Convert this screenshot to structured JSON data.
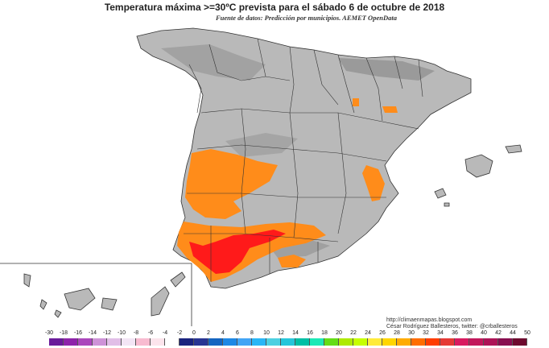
{
  "title": "Temperatura máxima >=30ºC prevista para el sábado 6 de octubre de 2018",
  "subtitle": "Fuente de datos: Predicción por municipios. AEMET OpenData",
  "credits": {
    "line1": "http://climaenmapas.blogspot.com",
    "line2": "César Rodríguez Ballesteros, twitter: @crballesteros"
  },
  "colors": {
    "land": "#b4b4b4",
    "land_dark": "#9e9e9e",
    "sea": "#ffffff",
    "border": "#333333",
    "hot_orange": "#ff8c1a",
    "hot_red": "#ff1a1a"
  },
  "legend": {
    "labels": [
      "-30",
      "-18",
      "-16",
      "-14",
      "-12",
      "-10",
      "-8",
      "-6",
      "-4",
      "-2",
      "0",
      "2",
      "4",
      "6",
      "8",
      "10",
      "12",
      "14",
      "16",
      "18",
      "20",
      "22",
      "24",
      "26",
      "28",
      "30",
      "32",
      "34",
      "36",
      "38",
      "40",
      "42",
      "44",
      "50"
    ],
    "colors": [
      "#6a1b9a",
      "#8e24aa",
      "#ab47bc",
      "#ce93d8",
      "#e1bee7",
      "#f3e5f5",
      "#f8bbd0",
      "#fce4ec",
      "#ffffff",
      "#1a237e",
      "#283593",
      "#1565c0",
      "#1e88e5",
      "#42a5f5",
      "#29b6f6",
      "#4dd0e1",
      "#26c6da",
      "#00bfa5",
      "#1de9b6",
      "#64dd17",
      "#aeea00",
      "#c6ff00",
      "#ffeb3b",
      "#ffd600",
      "#ffab00",
      "#ff6d00",
      "#ff3d00",
      "#e53935",
      "#d81b60",
      "#c2185b",
      "#ad1457",
      "#880e4f",
      "#6d0a2e"
    ]
  }
}
